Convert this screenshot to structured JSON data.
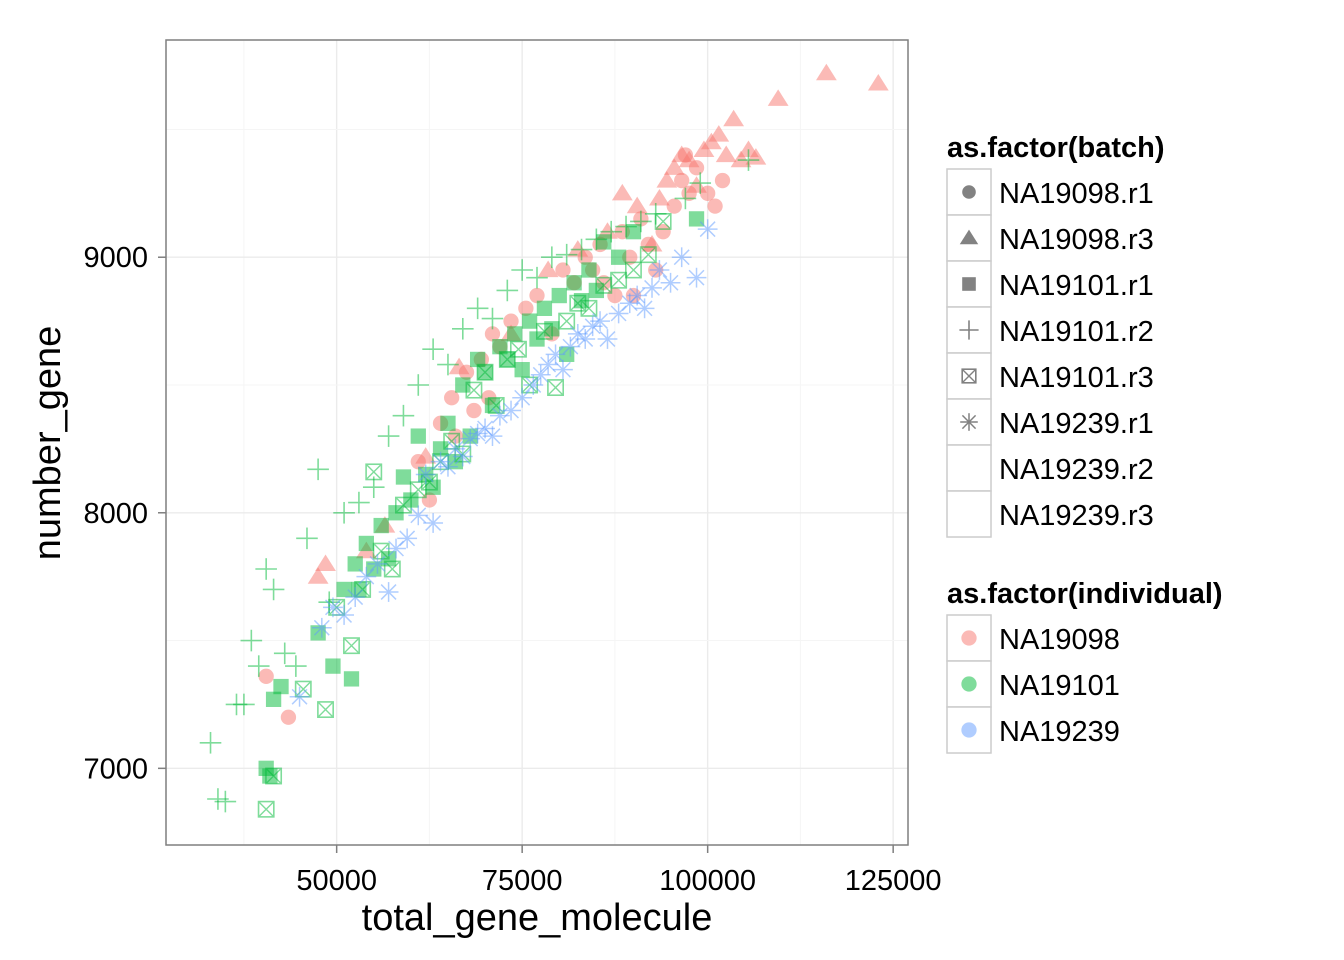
{
  "chart_data": {
    "type": "scatter",
    "title": "",
    "xlabel": "total_gene_molecule",
    "ylabel": "number_gene",
    "xlim": [
      27000,
      127000
    ],
    "ylim": [
      6700,
      9850
    ],
    "x_ticks": [
      50000,
      75000,
      100000,
      125000
    ],
    "y_ticks": [
      7000,
      8000,
      9000
    ],
    "grid": true,
    "legend_position": "right",
    "colors": {
      "NA19098": "#F8766D",
      "NA19101": "#00BA38",
      "NA19239": "#619CFF"
    },
    "shape_legend": {
      "title": "as.factor(batch)",
      "entries": [
        {
          "label": "NA19098.r1",
          "shape": "circle"
        },
        {
          "label": "NA19098.r3",
          "shape": "triangle"
        },
        {
          "label": "NA19101.r1",
          "shape": "square"
        },
        {
          "label": "NA19101.r2",
          "shape": "plus"
        },
        {
          "label": "NA19101.r3",
          "shape": "square-cross"
        },
        {
          "label": "NA19239.r1",
          "shape": "asterisk"
        },
        {
          "label": "NA19239.r2",
          "shape": "none"
        },
        {
          "label": "NA19239.r3",
          "shape": "none"
        }
      ]
    },
    "color_legend": {
      "title": "as.factor(individual)",
      "entries": [
        {
          "label": "NA19098",
          "color": "#F8766D"
        },
        {
          "label": "NA19101",
          "color": "#00BA38"
        },
        {
          "label": "NA19239",
          "color": "#619CFF"
        }
      ]
    },
    "series": [
      {
        "individual": "NA19098",
        "batch": "NA19098.r1",
        "shape": "circle",
        "x": [
          40500,
          43500,
          61000,
          62500,
          64000,
          65500,
          66000,
          67500,
          68500,
          69500,
          70500,
          71000,
          72000,
          73500,
          75500,
          77000,
          79000,
          80500,
          82000,
          83500,
          84500,
          85500,
          86000,
          87500,
          88500,
          89500,
          90000,
          91000,
          92000,
          93000,
          94000,
          95500,
          96500,
          97500,
          98500,
          100000,
          101000,
          102000,
          97000
        ],
        "y": [
          7360,
          7200,
          8200,
          8050,
          8350,
          8450,
          8300,
          8550,
          8400,
          8600,
          8450,
          8700,
          8650,
          8750,
          8800,
          8850,
          8700,
          8950,
          8900,
          9000,
          8950,
          9050,
          8900,
          8850,
          9100,
          9000,
          8850,
          9150,
          9050,
          8950,
          9100,
          9200,
          9300,
          9250,
          9350,
          9250,
          9200,
          9300,
          9400
        ]
      },
      {
        "individual": "NA19098",
        "batch": "NA19098.r3",
        "shape": "triangle",
        "x": [
          47500,
          48500,
          54000,
          56500,
          62000,
          66500,
          73500,
          78500,
          82500,
          86500,
          88500,
          90500,
          92500,
          93500,
          94500,
          95500,
          96500,
          97500,
          98500,
          99500,
          100500,
          101500,
          102500,
          103500,
          104500,
          105500,
          106500,
          109500,
          116000,
          123000
        ],
        "y": [
          7750,
          7800,
          7850,
          7950,
          8220,
          8570,
          8700,
          8950,
          9030,
          9100,
          9250,
          9200,
          9050,
          9230,
          9300,
          9350,
          9400,
          9380,
          9280,
          9420,
          9450,
          9480,
          9400,
          9540,
          9380,
          9420,
          9390,
          9620,
          9720,
          9680
        ]
      },
      {
        "individual": "NA19101",
        "batch": "NA19101.r1",
        "shape": "square",
        "x": [
          40500,
          41000,
          41500,
          42500,
          47500,
          49500,
          51000,
          52000,
          52500,
          53000,
          54000,
          55000,
          56000,
          57000,
          58000,
          59000,
          60000,
          61000,
          62000,
          63000,
          64000,
          65000,
          66000,
          67000,
          68000,
          69000,
          70000,
          71000,
          72000,
          73000,
          74000,
          75000,
          76000,
          77000,
          78000,
          79000,
          80000,
          81000,
          82000,
          83000,
          84000,
          85000,
          86000,
          88000,
          90000,
          98500
        ],
        "y": [
          7000,
          6970,
          7270,
          7320,
          7530,
          7400,
          7700,
          7350,
          7800,
          7700,
          7880,
          7780,
          7950,
          7820,
          8000,
          8140,
          8050,
          8300,
          8150,
          8100,
          8250,
          8350,
          8200,
          8500,
          8300,
          8600,
          8550,
          8420,
          8650,
          8600,
          8700,
          8560,
          8750,
          8680,
          8800,
          8720,
          8850,
          8620,
          8900,
          8830,
          8950,
          8870,
          9060,
          9000,
          9100,
          9150
        ]
      },
      {
        "individual": "NA19101",
        "batch": "NA19101.r2",
        "shape": "plus",
        "x": [
          33000,
          34000,
          35000,
          36500,
          37500,
          38500,
          39500,
          40500,
          41500,
          43000,
          44500,
          46000,
          47500,
          49000,
          51000,
          53000,
          55000,
          57000,
          59000,
          61000,
          63000,
          65000,
          67000,
          69000,
          71000,
          73000,
          75000,
          77000,
          79000,
          81000,
          83000,
          85000,
          87000,
          89000,
          91000,
          93000,
          97000,
          99000,
          105500
        ],
        "y": [
          7100,
          6880,
          6870,
          7250,
          7250,
          7500,
          7400,
          7780,
          7700,
          7450,
          7400,
          7900,
          8170,
          7650,
          8000,
          8040,
          8100,
          8300,
          8380,
          8500,
          8640,
          8580,
          8720,
          8800,
          8760,
          8870,
          8950,
          8920,
          9000,
          9010,
          9030,
          9070,
          9100,
          9120,
          9140,
          9170,
          9230,
          9290,
          9380
        ]
      },
      {
        "individual": "NA19101",
        "batch": "NA19101.r3",
        "shape": "square-cross",
        "x": [
          40500,
          41500,
          45500,
          48500,
          50000,
          52000,
          53500,
          55000,
          56000,
          57500,
          59000,
          61000,
          62500,
          64000,
          65500,
          67000,
          68500,
          70000,
          71500,
          73000,
          74500,
          76000,
          78000,
          79500,
          81000,
          82500,
          84000,
          86000,
          88000,
          90000,
          92000,
          94000
        ],
        "y": [
          6840,
          6970,
          7310,
          7230,
          7630,
          7480,
          7700,
          8160,
          7850,
          7780,
          8030,
          8090,
          8120,
          8200,
          8280,
          8230,
          8480,
          8550,
          8420,
          8600,
          8640,
          8500,
          8710,
          8490,
          8750,
          8820,
          8800,
          8890,
          8910,
          8950,
          9010,
          9140
        ]
      },
      {
        "individual": "NA19239",
        "batch": "NA19239.r1",
        "shape": "asterisk",
        "x": [
          45000,
          48000,
          49500,
          51000,
          52500,
          54000,
          55500,
          57000,
          58000,
          59500,
          61000,
          62000,
          63000,
          64000,
          65000,
          66000,
          67000,
          68000,
          69000,
          70000,
          71000,
          72000,
          73500,
          75000,
          76500,
          77500,
          78500,
          79500,
          80500,
          81500,
          82500,
          83500,
          84500,
          85500,
          86500,
          88000,
          89500,
          90500,
          91500,
          92500,
          93500,
          95000,
          96500,
          98500,
          100000
        ],
        "y": [
          7280,
          7550,
          7630,
          7600,
          7670,
          7750,
          7800,
          7690,
          7860,
          7900,
          7990,
          8150,
          7960,
          8200,
          8180,
          8250,
          8220,
          8290,
          8310,
          8330,
          8300,
          8380,
          8400,
          8450,
          8500,
          8540,
          8580,
          8620,
          8560,
          8650,
          8700,
          8680,
          8730,
          8750,
          8680,
          8780,
          8820,
          8850,
          8800,
          8880,
          8950,
          8900,
          9000,
          8920,
          9110
        ]
      }
    ]
  }
}
